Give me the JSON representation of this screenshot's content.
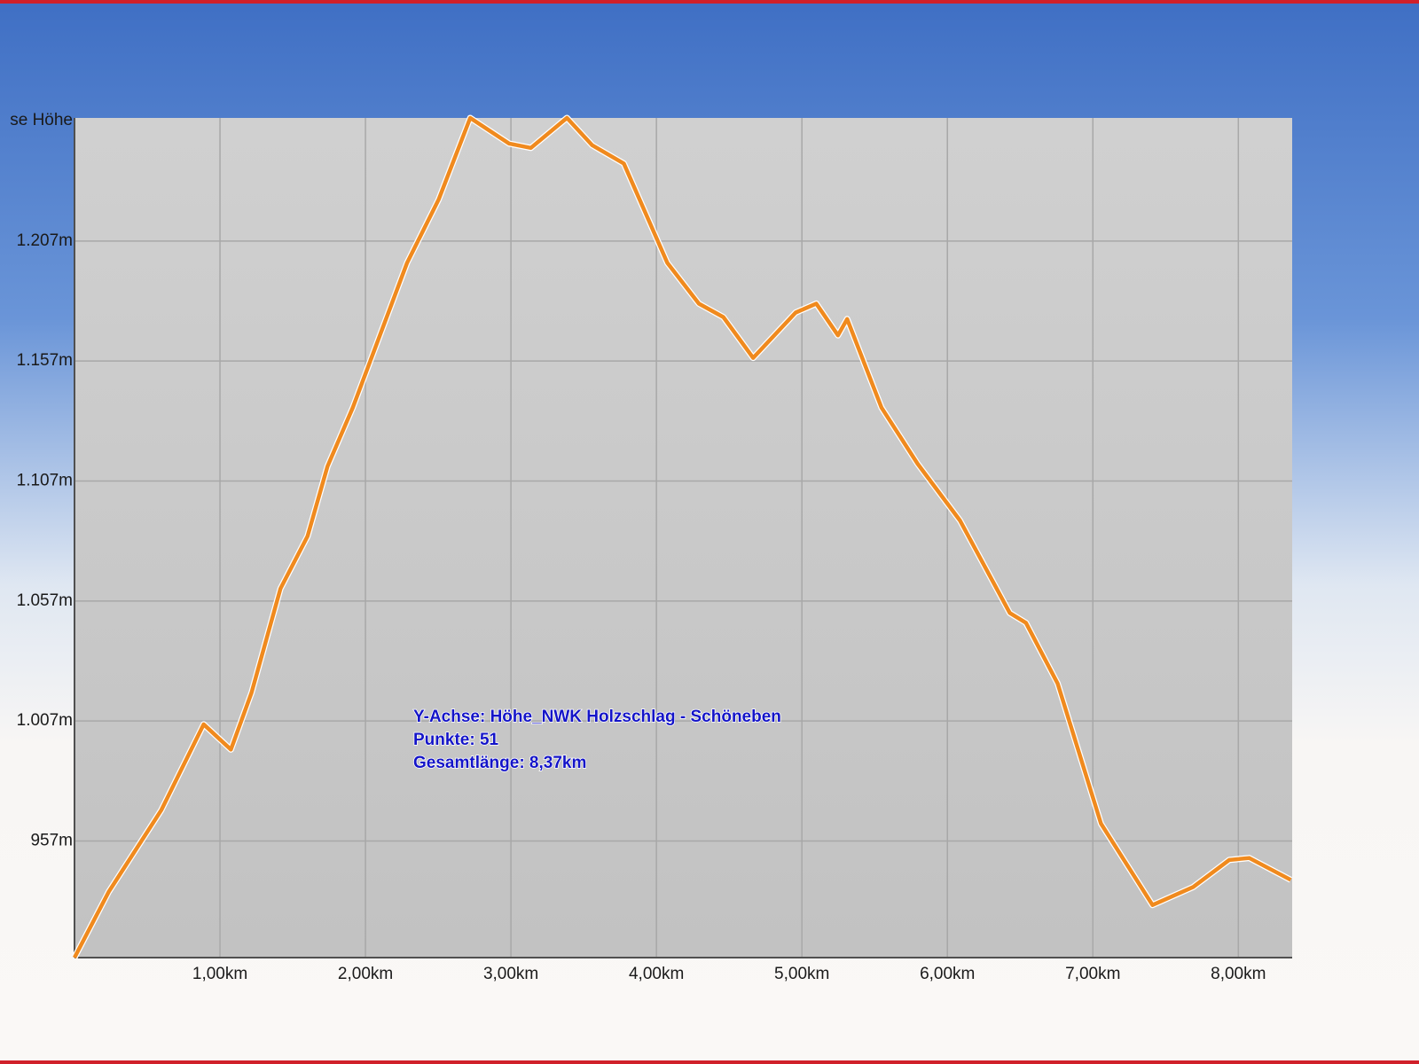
{
  "chart_data": {
    "type": "line",
    "y_axis_label": "se Höhe",
    "annotations": [
      "Y-Achse: Höhe_NWK Holzschlag - Schöneben",
      "Punkte: 51",
      "Gesamtlänge: 8,37km"
    ],
    "x": [
      0,
      0.236,
      0.596,
      0.888,
      1.075,
      1.217,
      1.416,
      1.602,
      1.739,
      1.913,
      2.286,
      2.503,
      2.72,
      2.988,
      3.137,
      3.385,
      3.559,
      3.776,
      4.075,
      4.292,
      4.46,
      4.665,
      4.957,
      5.099,
      5.248,
      5.311,
      5.547,
      5.795,
      6.087,
      6.429,
      6.54,
      6.758,
      7.056,
      7.41,
      7.689,
      7.938,
      8.075,
      8.36
    ],
    "series": [
      {
        "color": "#f08a1e",
        "values": [
          908.4,
          935.9,
          969.8,
          1005.6,
          995.1,
          1018.8,
          1062.2,
          1084.0,
          1113.1,
          1137.6,
          1197.9,
          1224.3,
          1258.3,
          1247.6,
          1245.8,
          1258.3,
          1246.9,
          1239.3,
          1197.9,
          1180.9,
          1175.3,
          1158.3,
          1177.2,
          1180.9,
          1167.7,
          1174.5,
          1137.6,
          1114.2,
          1090.5,
          1052.0,
          1047.9,
          1022.6,
          964.2,
          930.3,
          937.8,
          949.1,
          949.9,
          940.8
        ]
      }
    ],
    "xlim": [
      0,
      8.37
    ],
    "ylim": [
      908.4,
      1258.3
    ],
    "xticks": [
      {
        "value": 1,
        "label": "1,00km"
      },
      {
        "value": 2,
        "label": "2,00km"
      },
      {
        "value": 3,
        "label": "3,00km"
      },
      {
        "value": 4,
        "label": "4,00km"
      },
      {
        "value": 5,
        "label": "5,00km"
      },
      {
        "value": 6,
        "label": "6,00km"
      },
      {
        "value": 7,
        "label": "7,00km"
      },
      {
        "value": 8,
        "label": "8,00km"
      }
    ],
    "yticks": [
      {
        "value": 957,
        "label": "957m"
      },
      {
        "value": 1007,
        "label": "1.007m"
      },
      {
        "value": 1057,
        "label": "1.057m"
      },
      {
        "value": 1107,
        "label": "1.107m"
      },
      {
        "value": 1157,
        "label": "1.157m"
      },
      {
        "value": 1207,
        "label": "1.207m"
      }
    ],
    "grid": true
  }
}
